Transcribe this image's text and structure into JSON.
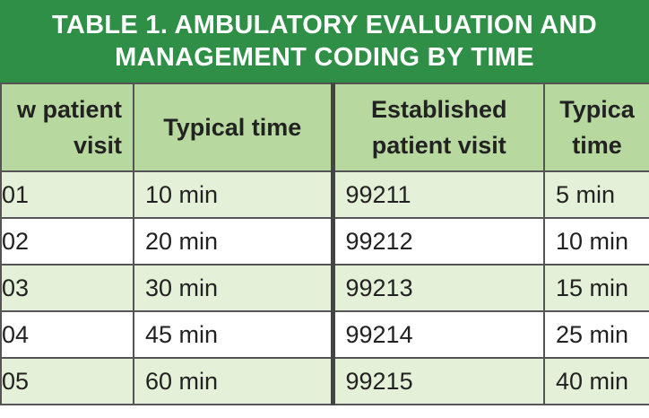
{
  "header": {
    "title": [
      "TABLE 1. AMBULATORY EVALUATION AND",
      "MANAGEMENT CODING BY TIME"
    ]
  },
  "table": {
    "columns": [
      [
        "w patient",
        "visit"
      ],
      [
        "Typical time"
      ],
      [
        "Established",
        "patient visit"
      ],
      [
        "Typica",
        "time"
      ]
    ],
    "rows": [
      [
        "01",
        "10 min",
        "99211",
        "5 min"
      ],
      [
        "02",
        "20 min",
        "99212",
        "10 min"
      ],
      [
        "03",
        "30 min",
        "99213",
        "15 min"
      ],
      [
        "04",
        "45 min",
        "99214",
        "25 min"
      ],
      [
        "05",
        "60 min",
        "99215",
        "40 min"
      ]
    ]
  }
}
